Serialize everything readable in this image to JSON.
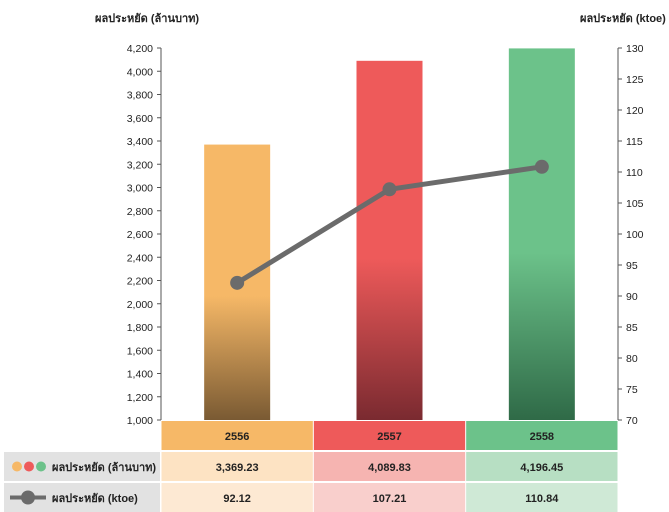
{
  "chart_data": {
    "type": "bar",
    "categories": [
      "2556",
      "2557",
      "2558"
    ],
    "series": [
      {
        "name": "ผลประหยัด (ล้านบาท)",
        "axis": "left",
        "kind": "bar",
        "values": [
          3369.23,
          4089.83,
          4196.45
        ],
        "value_labels": [
          "3,369.23",
          "4,089.83",
          "4,196.45"
        ]
      },
      {
        "name": "ผลประหยัด (ktoe)",
        "axis": "right",
        "kind": "line",
        "values": [
          92.12,
          107.21,
          110.84
        ],
        "value_labels": [
          "92.12",
          "107.21",
          "110.84"
        ]
      }
    ],
    "ylabel": "ผลประหยัด (ล้านบาท)",
    "y2label": "ผลประหยัด (ktoe)",
    "ylim": [
      1000,
      4200
    ],
    "y2lim": [
      70,
      130
    ],
    "yticks": [
      "1,000",
      "1,200",
      "1,400",
      "1,600",
      "1,800",
      "2,000",
      "2,200",
      "2,400",
      "2,600",
      "2,800",
      "3,000",
      "3,200",
      "3,400",
      "3,600",
      "3,800",
      "4,000",
      "4,200"
    ],
    "y2ticks": [
      "70",
      "75",
      "80",
      "85",
      "90",
      "95",
      "100",
      "105",
      "110",
      "115",
      "120",
      "125",
      "130"
    ],
    "grid": false,
    "legend": "table-below",
    "colors": {
      "bars": [
        "#f6b867",
        "#ee5a5a",
        "#6cc28a"
      ],
      "bars_bottom": [
        "#7a5a33",
        "#7a2a30",
        "#2f6a47"
      ],
      "header_cells": [
        "#f6b867",
        "#ee5a5a",
        "#6cc28a"
      ],
      "row1_cells": [
        "#fde3c3",
        "#f6b4b1",
        "#b7dfc3"
      ],
      "row2_cells": [
        "#fde9d3",
        "#f9cfcc",
        "#cfe9d6"
      ],
      "label_cells": "#e2e2e2",
      "line": "#6b6b6b",
      "legend_dots": [
        "#f6b867",
        "#ee5a5a",
        "#6cc28a"
      ]
    }
  }
}
